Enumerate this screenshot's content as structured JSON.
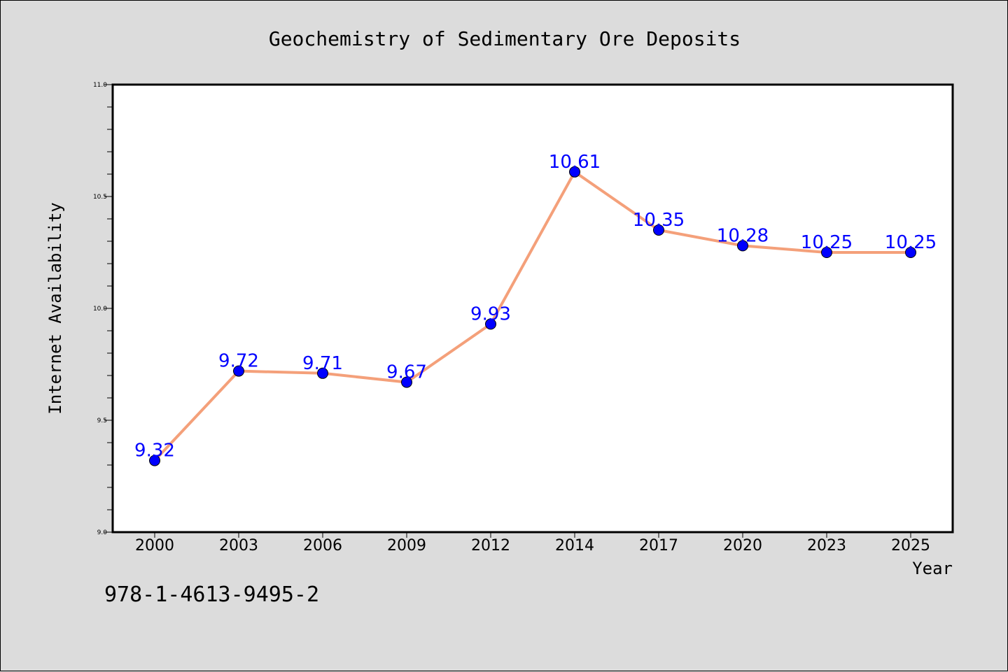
{
  "chart_data": {
    "type": "line",
    "title": "Geochemistry of Sedimentary Ore Deposits",
    "xlabel": "Year",
    "ylabel": "Internet Availability",
    "categories": [
      "2000",
      "2003",
      "2006",
      "2009",
      "2012",
      "2014",
      "2017",
      "2020",
      "2023",
      "2025"
    ],
    "series": [
      {
        "values": [
          9.32,
          9.72,
          9.71,
          9.67,
          9.93,
          10.61,
          10.35,
          10.28,
          10.25,
          10.25
        ],
        "data_labels": [
          "9.32",
          "9.72",
          "9.71",
          "9.67",
          "9.93",
          "10.61",
          "10.35",
          "10.28",
          "10.25",
          "10.25"
        ],
        "line_color": "#f4a07a",
        "marker_color": "#0000ff",
        "label_color": "#0000ff"
      }
    ],
    "ylim": [
      9.0,
      11.0
    ],
    "yticks": [
      "9.0",
      "9.5",
      "10.0",
      "10.5",
      "11.0"
    ],
    "grid": false,
    "legend": "none"
  },
  "footer": {
    "code": "978-1-4613-9495-2"
  },
  "colors": {
    "background": "#dcdcdc",
    "plot_area": "#ffffff"
  }
}
